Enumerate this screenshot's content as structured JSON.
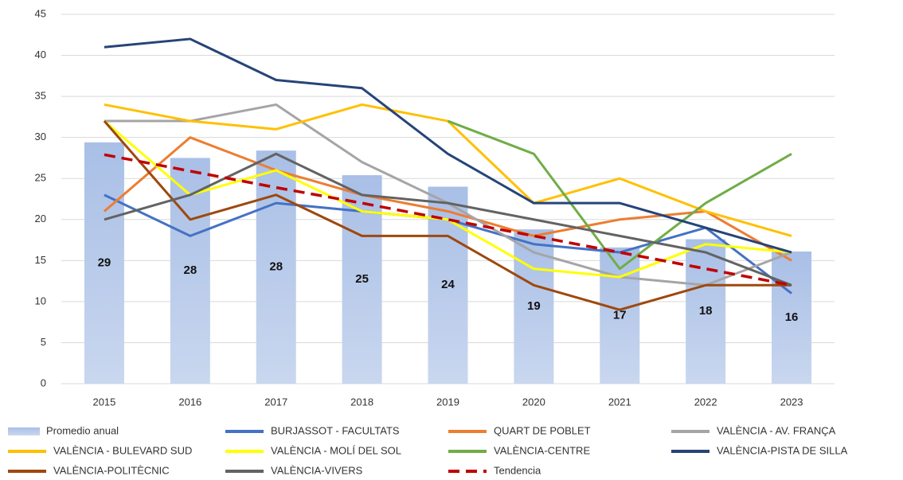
{
  "chart_data": {
    "type": "combo",
    "categories": [
      "2015",
      "2016",
      "2017",
      "2018",
      "2019",
      "2020",
      "2021",
      "2022",
      "2023"
    ],
    "ylim": [
      0,
      45
    ],
    "yticks": [
      0,
      5,
      10,
      15,
      20,
      25,
      30,
      35,
      40,
      45
    ],
    "grid": true,
    "series": [
      {
        "name": "Promedio anual",
        "type": "bar",
        "color": "#b4c7e7",
        "values": [
          29.4,
          27.5,
          28.4,
          25.4,
          24,
          18.8,
          16.6,
          17.6,
          16.1
        ],
        "value_labels": [
          "29",
          "28",
          "28",
          "25",
          "24",
          "19",
          "17",
          "18",
          "16"
        ]
      },
      {
        "name": "BURJASSOT - FACULTATS",
        "type": "line",
        "color": "#4472c4",
        "values": [
          23,
          18,
          22,
          21,
          20,
          17,
          16,
          19,
          11
        ]
      },
      {
        "name": "QUART DE POBLET",
        "type": "line",
        "color": "#ed7d31",
        "values": [
          21,
          30,
          26,
          23,
          21,
          18,
          20,
          21,
          15
        ]
      },
      {
        "name": "VALÈNCIA - AV. FRANÇA",
        "type": "line",
        "color": "#a5a5a5",
        "values": [
          32,
          32,
          34,
          27,
          22,
          16,
          13,
          12,
          16
        ]
      },
      {
        "name": "VALÈNCIA - BULEVARD SUD",
        "type": "line",
        "color": "#ffc000",
        "values": [
          34,
          32,
          31,
          34,
          32,
          22,
          25,
          21,
          18
        ]
      },
      {
        "name": "VALÈNCIA - MOLÍ DEL SOL",
        "type": "line",
        "color": "#ffff00",
        "values": [
          32,
          23,
          26,
          21,
          20,
          14,
          13,
          17,
          16
        ]
      },
      {
        "name": "VALÈNCIA-CENTRE",
        "type": "line",
        "color": "#70ad47",
        "values": [
          null,
          null,
          null,
          null,
          32,
          28,
          14,
          22,
          28
        ]
      },
      {
        "name": "VALÈNCIA-PISTA DE SILLA",
        "type": "line",
        "color": "#264478",
        "values": [
          41,
          42,
          37,
          36,
          28,
          22,
          22,
          19,
          16
        ]
      },
      {
        "name": "VALÈNCIA-POLITÈCNIC",
        "type": "line",
        "color": "#9e480e",
        "values": [
          32,
          20,
          23,
          18,
          18,
          12,
          9,
          12,
          12
        ]
      },
      {
        "name": "VALÈNCIA-VIVERS",
        "type": "line",
        "color": "#636363",
        "values": [
          20,
          23,
          28,
          23,
          22,
          20,
          18,
          16,
          12
        ]
      },
      {
        "name": "Tendencia",
        "type": "line",
        "color": "#c00000",
        "dashed": true,
        "values": [
          27.9,
          25.9,
          23.9,
          22,
          20,
          18,
          16,
          14,
          12
        ]
      }
    ]
  }
}
